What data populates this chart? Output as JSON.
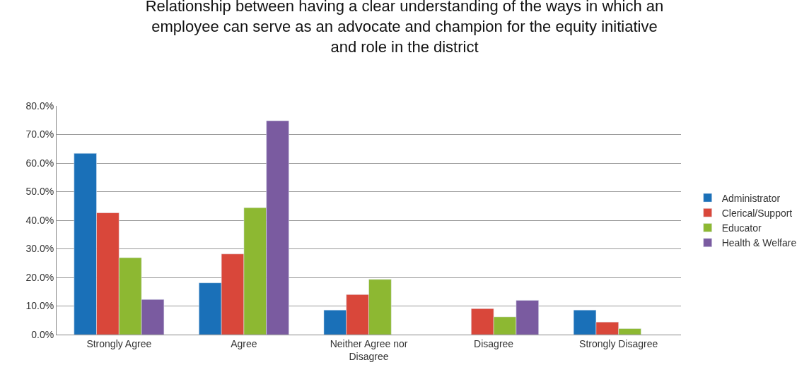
{
  "chart_data": {
    "type": "bar",
    "title": "Relationship between having a clear understanding of the ways in which an employee can serve as an advocate and champion for the equity initiative and role in the district",
    "categories": [
      "Strongly Agree",
      "Agree",
      "Neither Agree nor Disagree",
      "Disagree",
      "Strongly Disagree"
    ],
    "series": [
      {
        "name": "Administrator",
        "color": "#1a70b8",
        "values": [
          63.4,
          18.1,
          8.6,
          null,
          8.6
        ]
      },
      {
        "name": "Clerical/Support",
        "color": "#d9473a",
        "values": [
          42.6,
          28.2,
          14.0,
          9.1,
          4.4
        ]
      },
      {
        "name": "Educator",
        "color": "#8db832",
        "values": [
          26.9,
          44.4,
          19.3,
          6.2,
          2.1
        ]
      },
      {
        "name": "Health & Welfare",
        "color": "#7a5ba0",
        "values": [
          12.3,
          74.8,
          null,
          12.0,
          null
        ]
      }
    ],
    "ylim": [
      0,
      80
    ],
    "yticks": [
      {
        "value": 0,
        "label": "0.0%"
      },
      {
        "value": 10,
        "label": "10.0%"
      },
      {
        "value": 20,
        "label": "20.0%"
      },
      {
        "value": 30,
        "label": "30.0%"
      },
      {
        "value": 40,
        "label": "40.0%"
      },
      {
        "value": 50,
        "label": "50.0%"
      },
      {
        "value": 60,
        "label": "60.0%"
      },
      {
        "value": 70,
        "label": "70.0%"
      },
      {
        "value": 80,
        "label": "80.0%"
      }
    ],
    "grid": "y",
    "legend": "right"
  }
}
